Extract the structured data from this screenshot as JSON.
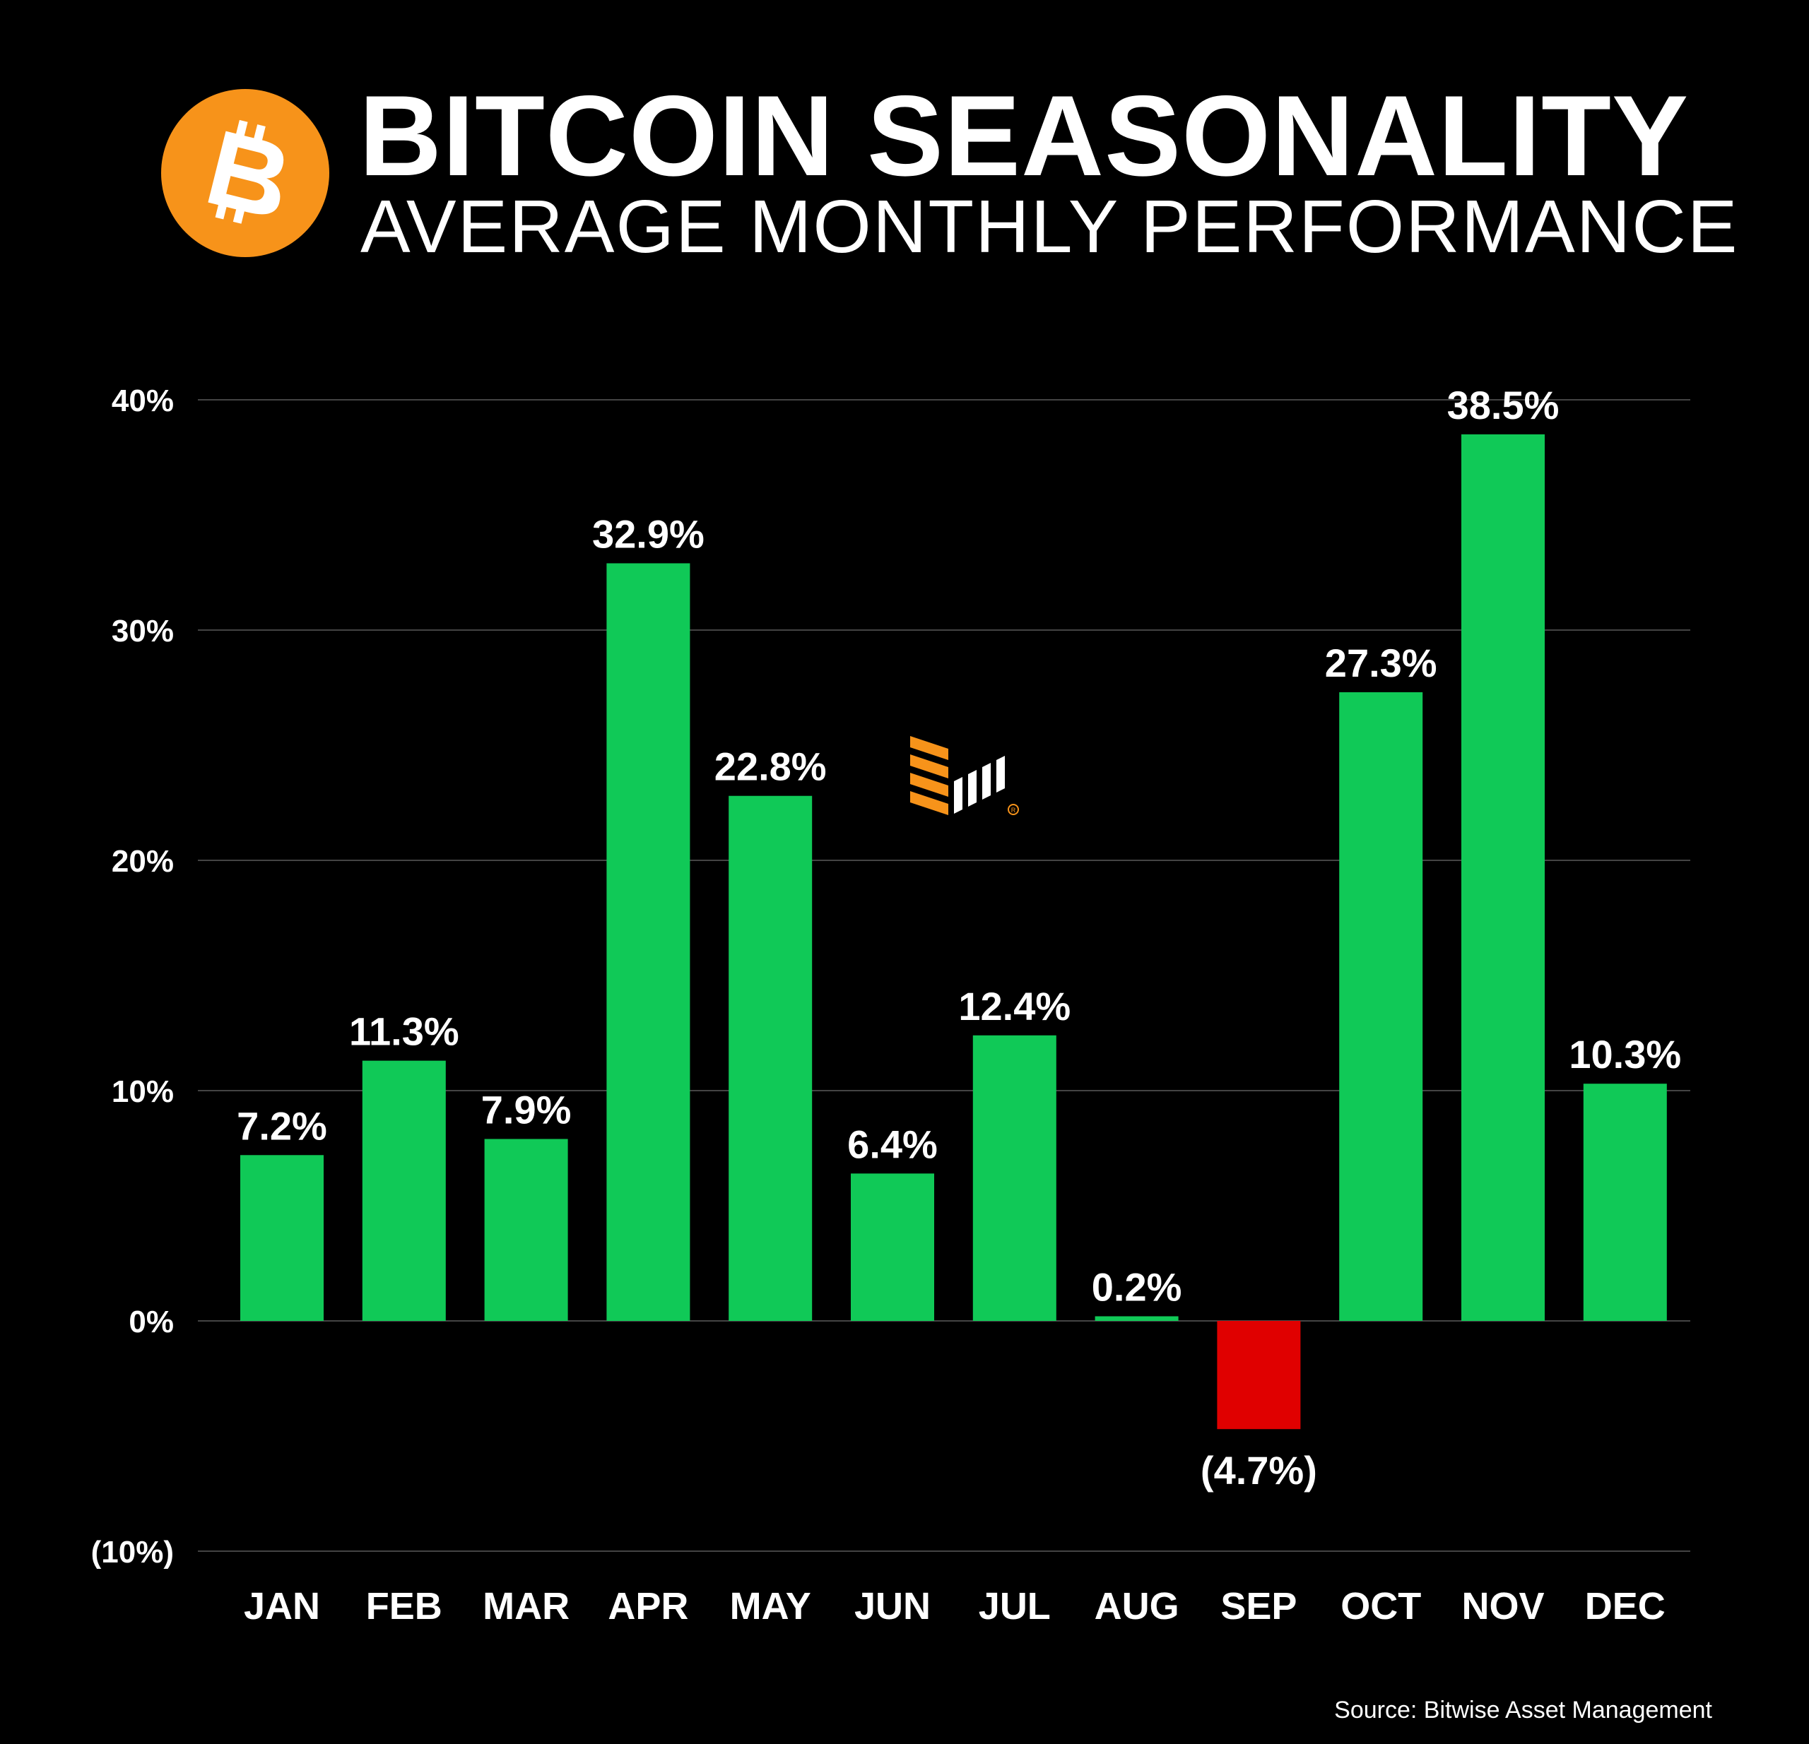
{
  "header": {
    "title": "BITCOIN SEASONALITY",
    "subtitle": "AVERAGE MONTHLY PERFORMANCE",
    "logo_icon": "bitcoin-icon",
    "logo_color": "#f7931a"
  },
  "source": "Source: Bitwise Asset Management",
  "brand_icon": "bitwise-logo-icon",
  "colors": {
    "positive": "#10c957",
    "negative": "#e00000",
    "grid": "#444444",
    "text": "#ffffff",
    "background": "#000000"
  },
  "chart_data": {
    "type": "bar",
    "title": "BITCOIN SEASONALITY",
    "subtitle": "AVERAGE MONTHLY PERFORMANCE",
    "categories": [
      "JAN",
      "FEB",
      "MAR",
      "APR",
      "MAY",
      "JUN",
      "JUL",
      "AUG",
      "SEP",
      "OCT",
      "NOV",
      "DEC"
    ],
    "values": [
      7.2,
      11.3,
      7.9,
      32.9,
      22.8,
      6.4,
      12.4,
      0.2,
      -4.7,
      27.3,
      38.5,
      10.3
    ],
    "value_labels": [
      "7.2%",
      "11.3%",
      "7.9%",
      "32.9%",
      "22.8%",
      "6.4%",
      "12.4%",
      "0.2%",
      "(4.7%)",
      "27.3%",
      "38.5%",
      "10.3%"
    ],
    "y_ticks": [
      40,
      30,
      20,
      10,
      0,
      -10
    ],
    "y_tick_labels": [
      "40%",
      "30%",
      "20%",
      "10%",
      "0%",
      "(10%)"
    ],
    "ylim": [
      -10,
      40
    ],
    "grid": true,
    "legend": "none",
    "xlabel": "",
    "ylabel": ""
  }
}
